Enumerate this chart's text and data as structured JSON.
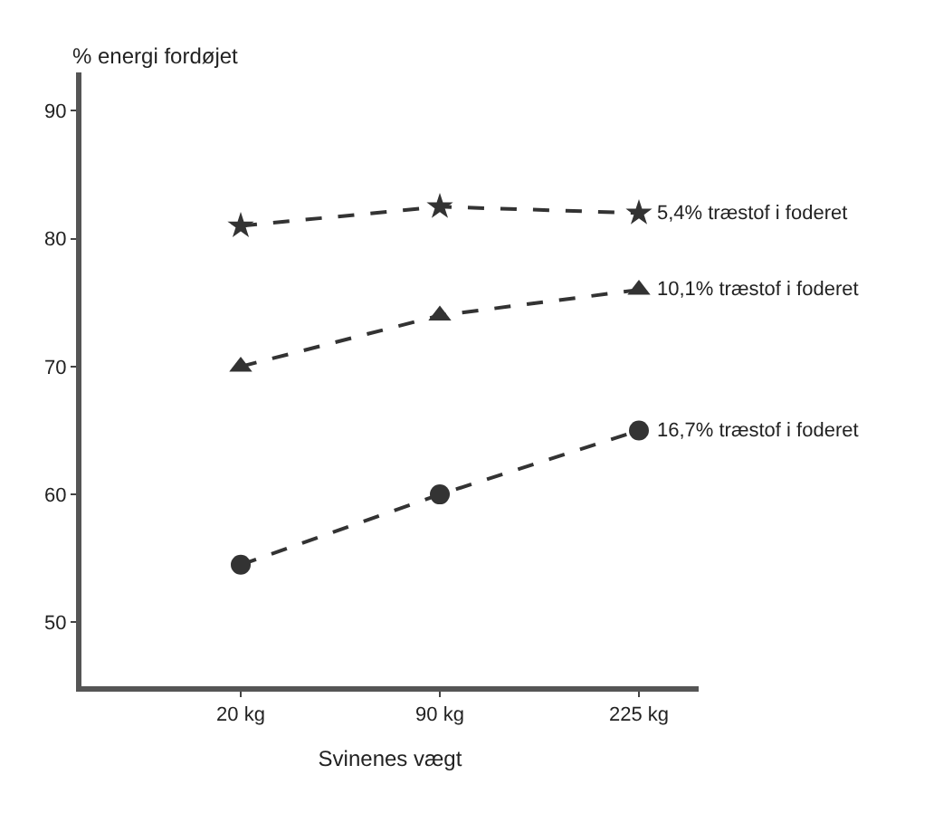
{
  "chart_data": {
    "type": "line",
    "ylabel": "% energi fordøjet",
    "xlabel": "Svinenes vægt",
    "categories": [
      "20 kg",
      "90 kg",
      "225 kg"
    ],
    "series": [
      {
        "name": "5,4% træstof i foderet",
        "color": "#333333",
        "marker": "star",
        "values": [
          81,
          82.5,
          82
        ]
      },
      {
        "name": "10,1% træstof i foderet",
        "color": "#333333",
        "marker": "triangle",
        "values": [
          70,
          74,
          76
        ]
      },
      {
        "name": "16,7% træstof i foderet",
        "color": "#333333",
        "marker": "circle",
        "values": [
          54.5,
          60,
          65
        ]
      }
    ],
    "ylim": [
      45,
      93
    ],
    "yticks": [
      50,
      60,
      70,
      80,
      90
    ],
    "legend": false,
    "line_style": "dashed"
  }
}
